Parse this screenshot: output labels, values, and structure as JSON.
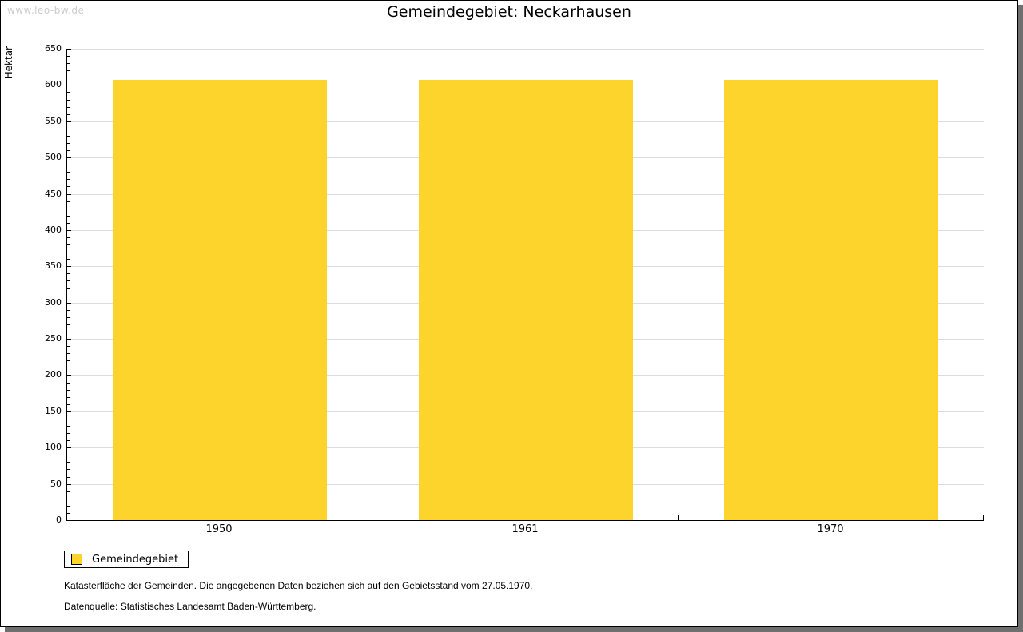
{
  "watermark": "www.leo-bw.de",
  "header": {
    "title": "Gemeindegebiet: Neckarhausen"
  },
  "legend": {
    "label": "Gemeindegebiet",
    "swatch_color": "#fcd42c"
  },
  "footnotes": [
    "Katasterfläche der Gemeinden. Die angegebenen Daten beziehen sich auf den Gebietsstand vom 27.05.1970.",
    "Datenquelle: Statistisches Landesamt Baden-Württemberg."
  ],
  "chart_data": {
    "type": "bar",
    "title": "Gemeindegebiet: Neckarhausen",
    "categories": [
      "1950",
      "1961",
      "1970"
    ],
    "series": [
      {
        "name": "Gemeindegebiet",
        "values": [
          607,
          607,
          607
        ]
      }
    ],
    "xlabel": "",
    "ylabel": "Hektar",
    "ylim": [
      0,
      650
    ],
    "y_major_step": 50,
    "y_minor_step": 10,
    "grid": true,
    "legend_position": "bottom-left",
    "bar_color": "#fcd42c",
    "grid_color": "#dcdcdc"
  }
}
